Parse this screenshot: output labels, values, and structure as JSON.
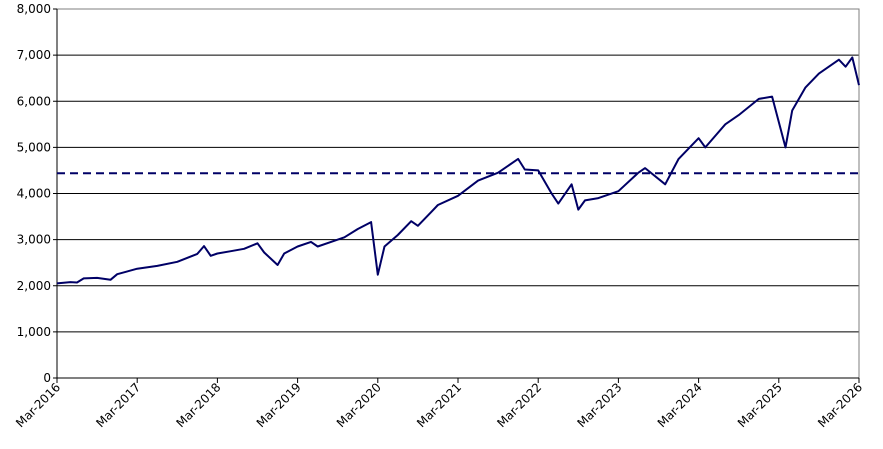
{
  "chart_data": {
    "type": "line",
    "title": "",
    "xlabel": "",
    "ylabel": "",
    "ylim": [
      0,
      8000
    ],
    "y_ticks": [
      0,
      1000,
      2000,
      3000,
      4000,
      5000,
      6000,
      7000,
      8000
    ],
    "y_tick_labels": [
      "0",
      "1,000",
      "2,000",
      "3,000",
      "4,000",
      "5,000",
      "6,000",
      "7,000",
      "8,000"
    ],
    "x_range": [
      "2016-03",
      "2026-03"
    ],
    "x_ticks": [
      "2016-03",
      "2017-03",
      "2018-03",
      "2019-03",
      "2020-03",
      "2021-03",
      "2022-03",
      "2023-03",
      "2024-03",
      "2025-03",
      "2026-03"
    ],
    "x_tick_labels": [
      "Mar-2016",
      "Mar-2017",
      "Mar-2018",
      "Mar-2019",
      "Mar-2020",
      "Mar-2021",
      "Mar-2022",
      "Mar-2023",
      "Mar-2024",
      "Mar-2025",
      "Mar-2026"
    ],
    "grid": "horizontal",
    "legend": "none",
    "colors": {
      "series": "#000066",
      "reference": "#000066",
      "grid": "#000000"
    },
    "series": [
      {
        "x": [
          "2016-03",
          "2016-05",
          "2016-06",
          "2016-07",
          "2016-09",
          "2016-11",
          "2016-12",
          "2017-03",
          "2017-06",
          "2017-09",
          "2017-12",
          "2018-01",
          "2018-02",
          "2018-03",
          "2018-05",
          "2018-07",
          "2018-09",
          "2018-10",
          "2018-12",
          "2019-01",
          "2019-03",
          "2019-05",
          "2019-06",
          "2019-08",
          "2019-10",
          "2019-12",
          "2020-02",
          "2020-03",
          "2020-04",
          "2020-06",
          "2020-08",
          "2020-09",
          "2020-11",
          "2020-12",
          "2021-03",
          "2021-06",
          "2021-09",
          "2021-12",
          "2022-01",
          "2022-03",
          "2022-05",
          "2022-06",
          "2022-08",
          "2022-09",
          "2022-10",
          "2022-12",
          "2023-03",
          "2023-06",
          "2023-07",
          "2023-10",
          "2023-12",
          "2024-03",
          "2024-04",
          "2024-07",
          "2024-09",
          "2024-12",
          "2025-02",
          "2025-04",
          "2025-05",
          "2025-07",
          "2025-09",
          "2025-12",
          "2026-01",
          "2026-02",
          "2026-03"
        ],
        "y": [
          2050,
          2080,
          2070,
          2160,
          2170,
          2130,
          2250,
          2370,
          2430,
          2520,
          2690,
          2860,
          2650,
          2700,
          2750,
          2800,
          2920,
          2720,
          2450,
          2700,
          2850,
          2950,
          2850,
          2950,
          3050,
          3230,
          3380,
          2240,
          2850,
          3100,
          3400,
          3300,
          3600,
          3750,
          3950,
          4280,
          4450,
          4750,
          4520,
          4500,
          4000,
          3780,
          4200,
          3650,
          3850,
          3900,
          4050,
          4450,
          4550,
          4200,
          4750,
          5200,
          5000,
          5500,
          5700,
          6050,
          6100,
          5000,
          5800,
          6300,
          6600,
          6900,
          6750,
          6950,
          6350
        ]
      }
    ],
    "reference_lines": [
      {
        "y": 4440,
        "style": "dashed"
      }
    ]
  }
}
